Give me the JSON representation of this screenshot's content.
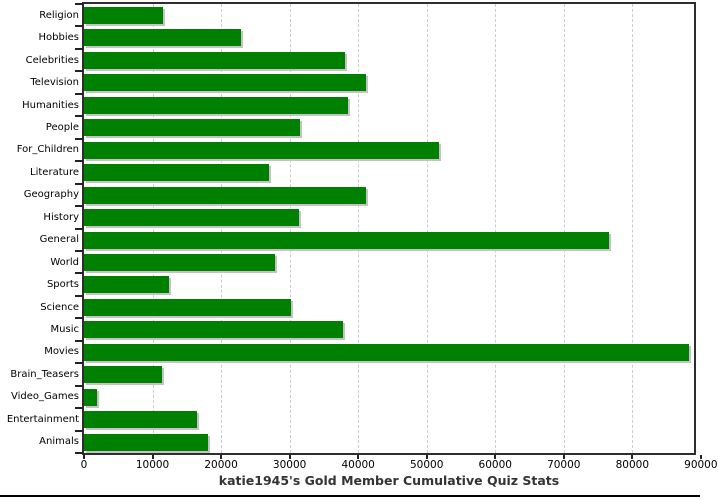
{
  "chart_data": {
    "type": "bar",
    "orientation": "horizontal",
    "title": "katie1945's Gold Member Cumulative Quiz Stats",
    "categories": [
      "Religion",
      "Hobbies",
      "Celebrities",
      "Television",
      "Humanities",
      "People",
      "For_Children",
      "Literature",
      "Geography",
      "History",
      "General",
      "World",
      "Sports",
      "Science",
      "Music",
      "Movies",
      "Brain_Teasers",
      "Video_Games",
      "Entertainment",
      "Animals"
    ],
    "values": [
      11500,
      22850,
      38150,
      41100,
      38500,
      31500,
      51800,
      27000,
      41100,
      31300,
      76600,
      27850,
      12450,
      30200,
      37750,
      88300,
      11350,
      1850,
      16550,
      18150
    ],
    "x_ticks": [
      0,
      10000,
      20000,
      30000,
      40000,
      50000,
      60000,
      70000,
      80000,
      90000
    ],
    "xlim": [
      0,
      89000
    ],
    "grid": "vertical-dashed",
    "legend": "none",
    "bar_color": "#008000",
    "shadow_color": "#c3c3c3",
    "gridline_color": "#cccccc",
    "frame_color": "#2e2e2e",
    "tick_color": "#222222",
    "text_color": "#000000",
    "title_color": "#333333"
  }
}
